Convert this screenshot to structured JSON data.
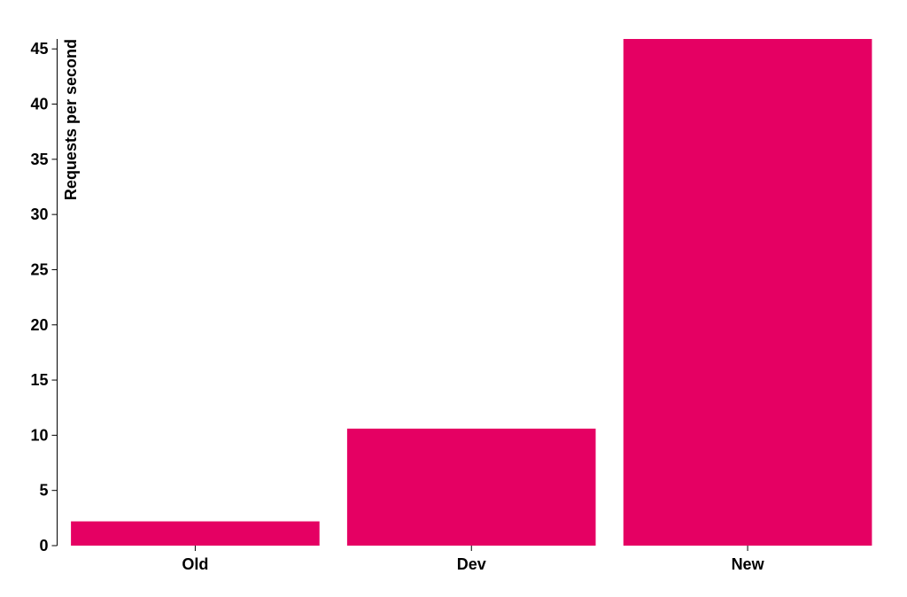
{
  "chart_data": {
    "type": "bar",
    "categories": [
      "Old",
      "Dev",
      "New"
    ],
    "values": [
      2.2,
      10.6,
      45.9
    ],
    "title": "",
    "xlabel": "",
    "ylabel": "Requests per second",
    "ylim": [
      0,
      45.9
    ],
    "yticks": [
      0,
      5,
      10,
      15,
      20,
      25,
      30,
      35,
      40,
      45
    ],
    "grid": false,
    "bar_color": "#e50063"
  }
}
